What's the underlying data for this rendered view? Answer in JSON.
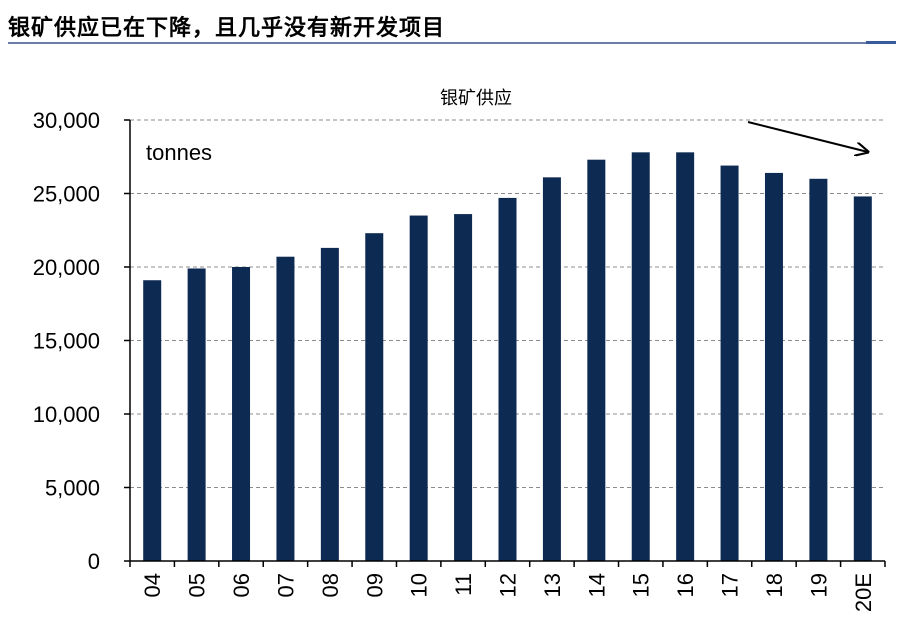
{
  "header": {
    "title": "银矿供应已在下降，且几乎没有新开发项目"
  },
  "colors": {
    "bar": "#0d2a52",
    "gridline": "#8c8c8c",
    "axis": "#000000",
    "heading_rule": "#6b7fa8"
  },
  "chart_data": {
    "type": "bar",
    "title": "银矿供应",
    "unit_label": "tonnes",
    "xlabel": "",
    "ylabel": "",
    "ylim": [
      0,
      30000
    ],
    "y_ticks": [
      0,
      5000,
      10000,
      15000,
      20000,
      25000,
      30000
    ],
    "y_tick_labels": [
      "0",
      "5,000",
      "10,000",
      "15,000",
      "20,000",
      "25,000",
      "30,000"
    ],
    "grid": true,
    "legend": "none",
    "annotation": "downward-trend-arrow",
    "categories": [
      "04",
      "05",
      "06",
      "07",
      "08",
      "09",
      "10",
      "11",
      "12",
      "13",
      "14",
      "15",
      "16",
      "17",
      "18",
      "19",
      "20E"
    ],
    "series": [
      {
        "name": "银矿供应",
        "values": [
          19100,
          19900,
          20000,
          20700,
          21300,
          22300,
          23500,
          23600,
          24700,
          26100,
          27300,
          27800,
          27800,
          26900,
          26400,
          26000,
          24800
        ]
      }
    ]
  }
}
